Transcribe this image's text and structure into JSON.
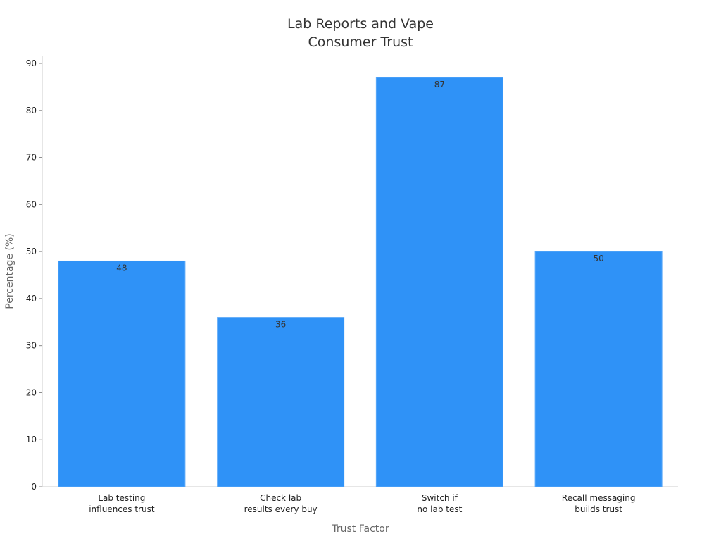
{
  "chart_data": {
    "type": "bar",
    "title": [
      "Lab Reports and Vape",
      "Consumer Trust"
    ],
    "xlabel": "Trust Factor",
    "ylabel": "Percentage (%)",
    "categories": [
      [
        "Lab testing",
        "influences trust"
      ],
      [
        "Check lab",
        "results every buy"
      ],
      [
        "Switch if",
        "no lab test"
      ],
      [
        "Recall messaging",
        "builds trust"
      ]
    ],
    "values": [
      48,
      36,
      87,
      50
    ],
    "ylim": [
      0,
      90
    ],
    "yticks": [
      0,
      10,
      20,
      30,
      40,
      50,
      60,
      70,
      80,
      90
    ],
    "bar_color": "#2f92f7",
    "grid": false
  }
}
